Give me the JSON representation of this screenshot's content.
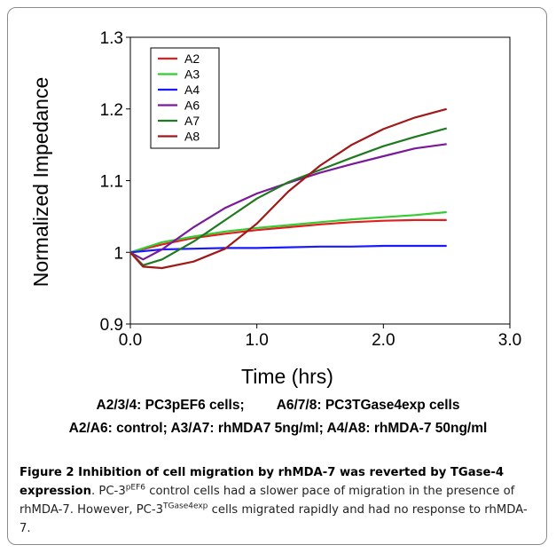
{
  "chart_data": {
    "type": "line",
    "title": "",
    "xlabel": "Time (hrs)",
    "ylabel": "Normalized Impedance",
    "xlim": [
      0,
      3
    ],
    "ylim": [
      0.9,
      1.3
    ],
    "xticks": [
      0,
      1,
      2,
      3
    ],
    "xtick_labels": [
      "0.0",
      "1.0",
      "2.0",
      "3.0"
    ],
    "yticks": [
      0.9,
      1,
      1.1,
      1.2,
      1.3
    ],
    "ytick_labels": [
      "0.9",
      "1",
      "1.1",
      "1.2",
      "1.3"
    ],
    "grid": false,
    "legend_position": "top-left",
    "series": [
      {
        "name": "A2",
        "color": "#e02020",
        "x": [
          0,
          0.25,
          0.5,
          0.75,
          1.0,
          1.25,
          1.5,
          1.75,
          2.0,
          2.25,
          2.5
        ],
        "y": [
          1.0,
          1.011,
          1.02,
          1.026,
          1.031,
          1.035,
          1.039,
          1.042,
          1.044,
          1.045,
          1.045
        ]
      },
      {
        "name": "A3",
        "color": "#33cc33",
        "x": [
          0,
          0.25,
          0.5,
          0.75,
          1.0,
          1.25,
          1.5,
          1.75,
          2.0,
          2.25,
          2.5
        ],
        "y": [
          1.0,
          1.014,
          1.022,
          1.029,
          1.034,
          1.038,
          1.042,
          1.046,
          1.049,
          1.052,
          1.056
        ]
      },
      {
        "name": "A4",
        "color": "#1a1aff",
        "x": [
          0,
          0.25,
          0.5,
          0.75,
          1.0,
          1.25,
          1.5,
          1.75,
          2.0,
          2.25,
          2.5
        ],
        "y": [
          1.0,
          1.004,
          1.005,
          1.006,
          1.006,
          1.007,
          1.008,
          1.008,
          1.009,
          1.009,
          1.009
        ]
      },
      {
        "name": "A6",
        "color": "#7a1a9a",
        "x": [
          0,
          0.1,
          0.25,
          0.5,
          0.75,
          1.0,
          1.25,
          1.5,
          1.75,
          2.0,
          2.25,
          2.5
        ],
        "y": [
          1.0,
          0.99,
          1.004,
          1.035,
          1.062,
          1.082,
          1.097,
          1.111,
          1.123,
          1.134,
          1.145,
          1.151
        ]
      },
      {
        "name": "A7",
        "color": "#1f7a1f",
        "x": [
          0,
          0.1,
          0.25,
          0.5,
          0.75,
          1.0,
          1.25,
          1.5,
          1.75,
          2.0,
          2.25,
          2.5
        ],
        "y": [
          1.0,
          0.982,
          0.99,
          1.015,
          1.045,
          1.075,
          1.098,
          1.115,
          1.132,
          1.148,
          1.161,
          1.173
        ]
      },
      {
        "name": "A8",
        "color": "#a01818",
        "x": [
          0,
          0.1,
          0.25,
          0.5,
          0.75,
          1.0,
          1.25,
          1.5,
          1.75,
          2.0,
          2.25,
          2.5
        ],
        "y": [
          1.0,
          0.98,
          0.978,
          0.987,
          1.005,
          1.04,
          1.085,
          1.121,
          1.15,
          1.172,
          1.188,
          1.2
        ]
      }
    ]
  },
  "notes": {
    "line1_left": "A2/3/4: PC3pEF6 cells;",
    "line1_right": "A6/7/8: PC3TGase4exp cells",
    "line2": "A2/A6: control; A3/A7: rhMDA7 5ng/ml; A4/A8: rhMDA-7 50ng/ml"
  },
  "caption": {
    "title": "Figure 2 Inhibition of cell migration by rhMDA-7 was reverted by TGase-4 expression",
    "body_part1": ". PC-3",
    "sup1": "pEF6",
    "body_part2": " control cells had a slower pace of migration in the presence of rhMDA-7. However, PC-3",
    "sup2": "TGase4exp",
    "body_part3": " cells migrated rapidly and had no response to rhMDA-7."
  }
}
